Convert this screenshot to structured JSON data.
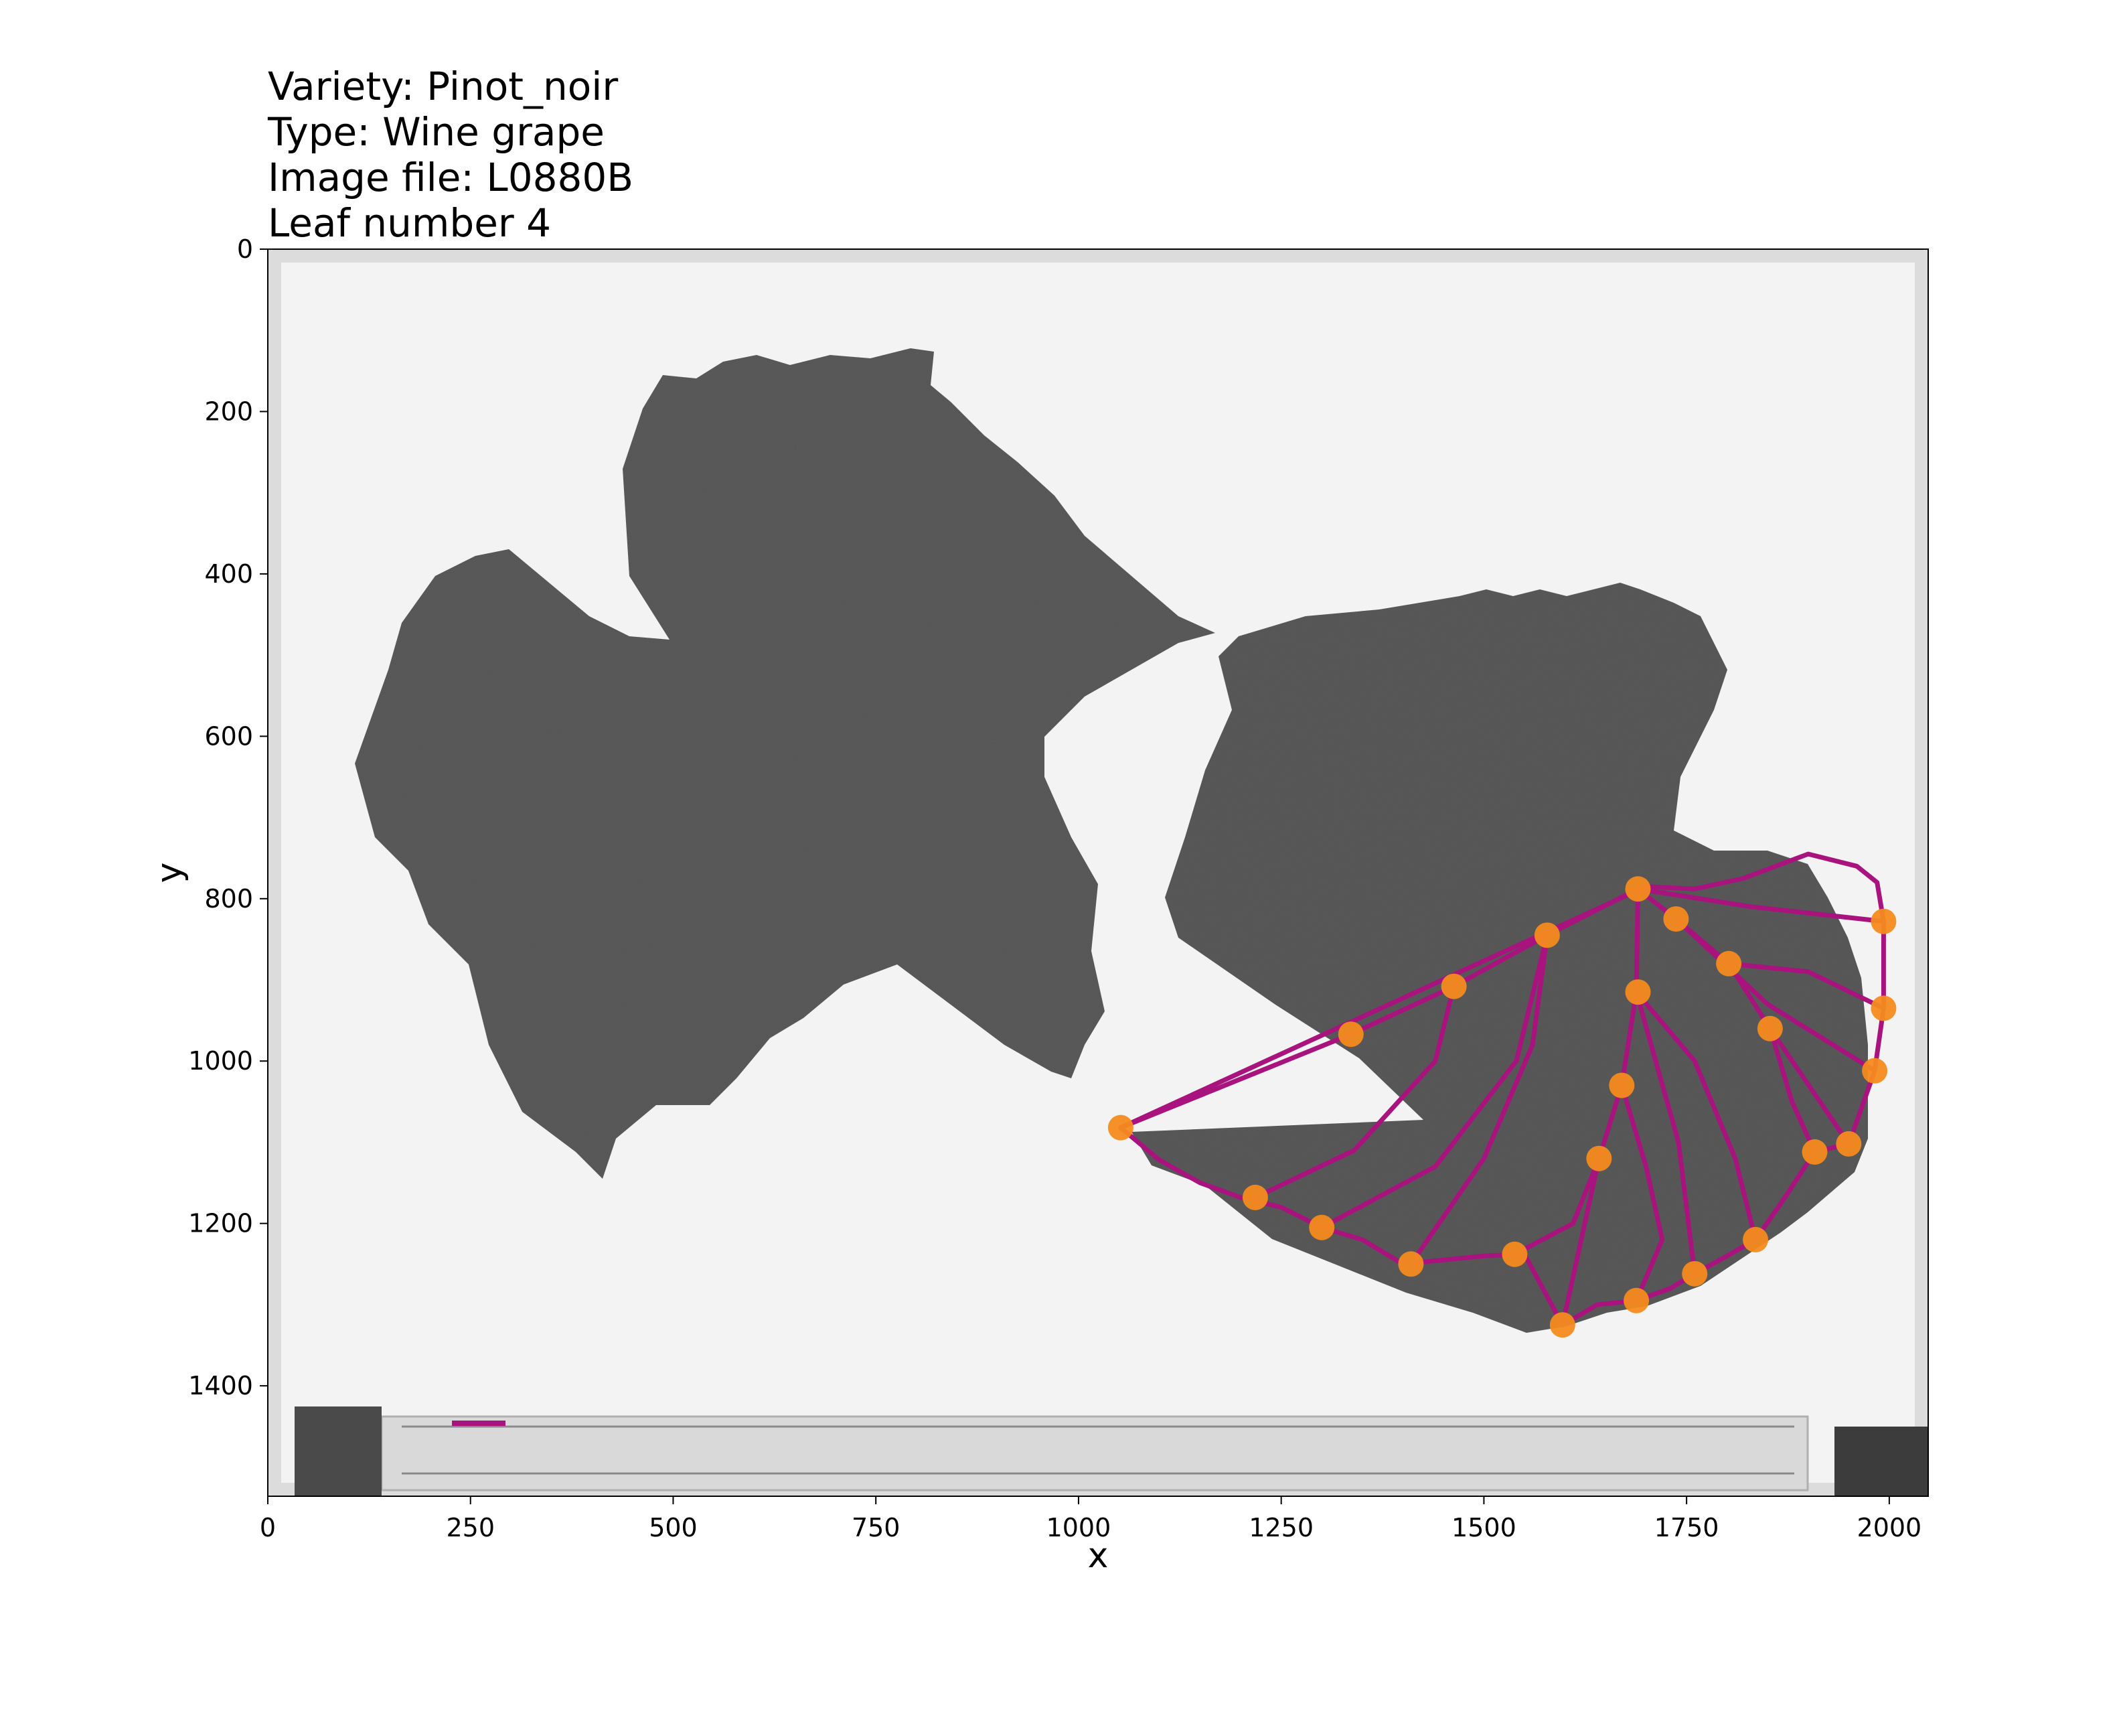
{
  "title": {
    "lines": [
      "Variety: Pinot_noir",
      "Type: Wine grape",
      "Image file: L0880B",
      "Leaf number 4"
    ]
  },
  "chart_data": {
    "type": "scatter",
    "xlabel": "x",
    "ylabel": "y",
    "xlim": [
      0,
      2048
    ],
    "ylim": [
      1536,
      0
    ],
    "xticks": [
      0,
      250,
      500,
      750,
      1000,
      1250,
      1500,
      1750,
      2000
    ],
    "yticks": [
      0,
      200,
      400,
      600,
      800,
      1000,
      1200,
      1400
    ],
    "grid": false,
    "colors": {
      "outline": "#a8137e",
      "landmark": "#f58b1f",
      "leaf": "#5a5a5a",
      "background": "#f2f2f2"
    },
    "landmarks": {
      "x": [
        1690,
        1578,
        1463,
        1336,
        1052,
        1690,
        1670,
        1642,
        1737,
        1802,
        1853,
        1218,
        1300,
        1410,
        1538,
        1597,
        1688,
        1760,
        1835,
        1908,
        1950,
        1982,
        1993,
        1993
      ],
      "y": [
        788,
        845,
        908,
        967,
        1082,
        915,
        1030,
        1120,
        825,
        880,
        960,
        1168,
        1205,
        1250,
        1238,
        1325,
        1295,
        1262,
        1220,
        1112,
        1102,
        1012,
        935,
        828
      ]
    },
    "outline": {
      "x": [
        1052,
        1100,
        1150,
        1200,
        1250,
        1300,
        1350,
        1400,
        1450,
        1500,
        1550,
        1597,
        1640,
        1688,
        1730,
        1760,
        1800,
        1835,
        1870,
        1908,
        1950,
        1965,
        1982,
        1993,
        1993,
        1985,
        1960,
        1900,
        1820,
        1760,
        1700
      ],
      "y": [
        1082,
        1122,
        1150,
        1168,
        1180,
        1205,
        1220,
        1250,
        1245,
        1240,
        1238,
        1325,
        1300,
        1295,
        1280,
        1262,
        1240,
        1220,
        1170,
        1112,
        1102,
        1060,
        1012,
        935,
        828,
        780,
        760,
        745,
        775,
        788,
        785
      ]
    },
    "midveins": [
      {
        "x": [
          1690,
          1578,
          1463,
          1336,
          1052
        ],
        "y": [
          788,
          845,
          908,
          967,
          1082
        ]
      },
      {
        "x": [
          1690,
          1688,
          1670,
          1642,
          1597
        ],
        "y": [
          788,
          915,
          1030,
          1120,
          1325
        ]
      },
      {
        "x": [
          1690,
          1737,
          1802,
          1853,
          1950
        ],
        "y": [
          788,
          825,
          880,
          960,
          1102
        ]
      },
      {
        "x": [
          1690,
          1830,
          1993
        ],
        "y": [
          788,
          810,
          828
        ]
      }
    ],
    "veins": [
      {
        "x": [
          1578,
          1540,
          1440,
          1300
        ],
        "y": [
          845,
          1000,
          1130,
          1205
        ]
      },
      {
        "x": [
          1463,
          1440,
          1340,
          1218
        ],
        "y": [
          908,
          1000,
          1110,
          1168
        ]
      },
      {
        "x": [
          1578,
          1560,
          1500,
          1410
        ],
        "y": [
          845,
          980,
          1120,
          1250
        ]
      },
      {
        "x": [
          1670,
          1700,
          1720,
          1688
        ],
        "y": [
          1030,
          1130,
          1220,
          1295
        ]
      },
      {
        "x": [
          1688,
          1740,
          1760
        ],
        "y": [
          915,
          1100,
          1262
        ]
      },
      {
        "x": [
          1688,
          1760,
          1810,
          1835
        ],
        "y": [
          915,
          1000,
          1120,
          1220
        ]
      },
      {
        "x": [
          1642,
          1610,
          1538
        ],
        "y": [
          1120,
          1200,
          1238
        ]
      },
      {
        "x": [
          1737,
          1850,
          1982
        ],
        "y": [
          825,
          930,
          1012
        ]
      },
      {
        "x": [
          1802,
          1900,
          1993
        ],
        "y": [
          880,
          890,
          935
        ]
      },
      {
        "x": [
          1853,
          1880,
          1908
        ],
        "y": [
          960,
          1050,
          1112
        ]
      }
    ]
  }
}
